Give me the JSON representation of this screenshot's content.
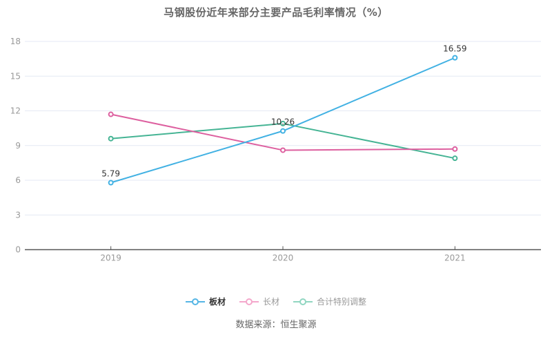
{
  "page": {
    "title": "马钢股份近年来部分主要产品毛利率情况（%）",
    "source": "数据来源：恒生聚源"
  },
  "chart_data": {
    "type": "line",
    "title": "马钢股份近年来部分主要产品毛利率情况（%）",
    "categories": [
      "2019",
      "2020",
      "2021"
    ],
    "series": [
      {
        "name": "板材",
        "values": [
          5.79,
          10.26,
          16.59
        ],
        "labels": [
          "5.79",
          "10.26",
          "16.59"
        ],
        "color": "#41b1e3",
        "legend_color": "#54b5e5",
        "emphasis": true
      },
      {
        "name": "长材",
        "values": [
          11.7,
          8.6,
          8.7
        ],
        "labels": null,
        "color": "#dd5f9f",
        "legend_color": "#f4a7cb",
        "emphasis": false
      },
      {
        "name": "合计特别调整",
        "values": [
          9.6,
          10.9,
          7.9
        ],
        "labels": null,
        "color": "#45b494",
        "legend_color": "#90d6c1",
        "emphasis": false
      }
    ],
    "ylim": [
      0,
      18
    ],
    "yticks": [
      0,
      3,
      6,
      9,
      12,
      15,
      18
    ],
    "grid": true,
    "legend_position": "bottom",
    "source": "数据来源：恒生聚源",
    "colors": {
      "grid_line": "#e4e9f4",
      "axis_line": "#555555",
      "axis_label": "#999999",
      "title": "#666666",
      "data_label": "#333333",
      "marker_fill": "#ffffff"
    }
  }
}
